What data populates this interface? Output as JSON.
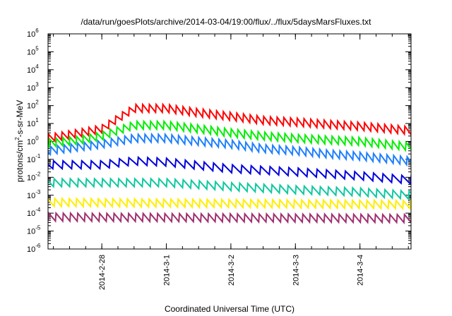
{
  "chart_data": {
    "type": "line",
    "title": "/data/run/goesPlots/archive/2014-03-04/19:00/flux/../flux/5daysMarsFluxes.txt",
    "xlabel": "Coordinated Universal Time (UTC)",
    "ylabel": {
      "prefix": "protons/cm",
      "sup": "2",
      "suffix": "-s-sr-MeV"
    },
    "yscale": "log",
    "ylim": [
      1e-06,
      1000000.0
    ],
    "y_ticks": [
      {
        "base": "10",
        "exp": "-6",
        "value": 1e-06
      },
      {
        "base": "10",
        "exp": "-5",
        "value": 1e-05
      },
      {
        "base": "10",
        "exp": "-4",
        "value": 0.0001
      },
      {
        "base": "10",
        "exp": "-3",
        "value": 0.001
      },
      {
        "base": "10",
        "exp": "-2",
        "value": 0.01
      },
      {
        "base": "10",
        "exp": "-1",
        "value": 0.1
      },
      {
        "base": "10",
        "exp": "0",
        "value": 1
      },
      {
        "base": "10",
        "exp": "1",
        "value": 10
      },
      {
        "base": "10",
        "exp": "2",
        "value": 100
      },
      {
        "base": "10",
        "exp": "3",
        "value": 1000
      },
      {
        "base": "10",
        "exp": "4",
        "value": 10000
      },
      {
        "base": "10",
        "exp": "5",
        "value": 100000
      },
      {
        "base": "10",
        "exp": "6",
        "value": 1000000
      }
    ],
    "xlim": [
      "2014-02-27T04:00",
      "2014-03-04T19:00"
    ],
    "x_ticks": [
      {
        "label": "2014-2-28",
        "value": "2014-02-28T00:00"
      },
      {
        "label": "2014-3-1",
        "value": "2014-03-01T00:00"
      },
      {
        "label": "2014-3-2",
        "value": "2014-03-02T00:00"
      },
      {
        "label": "2014-3-3",
        "value": "2014-03-03T00:00"
      },
      {
        "label": "2014-3-4",
        "value": "2014-03-04T00:00"
      }
    ],
    "grid": false,
    "legend": "none",
    "series": [
      {
        "color": "#ff0000",
        "tooth_period_hours": 2.5,
        "x": [
          "2014-02-27T04:00",
          "2014-02-27T16:00",
          "2014-02-28T00:00",
          "2014-02-28T12:00",
          "2014-03-01T00:00",
          "2014-03-01T12:00",
          "2014-03-02T00:00",
          "2014-03-02T12:00",
          "2014-03-03T00:00",
          "2014-03-03T12:00",
          "2014-03-04T00:00",
          "2014-03-04T19:00"
        ],
        "y": [
          1.5,
          3,
          5,
          70,
          70,
          40,
          25,
          15,
          12,
          9,
          7,
          4
        ]
      },
      {
        "color": "#00ee00",
        "tooth_period_hours": 2.5,
        "x": [
          "2014-02-27T04:00",
          "2014-02-27T16:00",
          "2014-02-28T00:00",
          "2014-02-28T12:00",
          "2014-03-01T00:00",
          "2014-03-01T12:00",
          "2014-03-02T00:00",
          "2014-03-02T12:00",
          "2014-03-03T00:00",
          "2014-03-03T12:00",
          "2014-03-04T00:00",
          "2014-03-04T19:00"
        ],
        "y": [
          0.8,
          1.2,
          2,
          8,
          8,
          5,
          3,
          2,
          1.5,
          1.2,
          1,
          0.5
        ]
      },
      {
        "color": "#1e7fff",
        "tooth_period_hours": 2.5,
        "x": [
          "2014-02-27T04:00",
          "2014-02-27T16:00",
          "2014-02-28T00:00",
          "2014-02-28T12:00",
          "2014-03-01T00:00",
          "2014-03-01T12:00",
          "2014-03-02T00:00",
          "2014-03-02T12:00",
          "2014-03-03T00:00",
          "2014-03-03T12:00",
          "2014-03-04T00:00",
          "2014-03-04T19:00"
        ],
        "y": [
          0.3,
          0.5,
          0.7,
          1.5,
          1.5,
          1,
          0.7,
          0.4,
          0.3,
          0.2,
          0.15,
          0.08
        ]
      },
      {
        "color": "#0000dd",
        "tooth_period_hours": 3.5,
        "x": [
          "2014-02-27T04:00",
          "2014-02-28T00:00",
          "2014-02-28T12:00",
          "2014-03-01T00:00",
          "2014-03-02T00:00",
          "2014-03-03T00:00",
          "2014-03-04T00:00",
          "2014-03-04T19:00"
        ],
        "y": [
          0.05,
          0.05,
          0.08,
          0.07,
          0.03,
          0.02,
          0.012,
          0.007
        ]
      },
      {
        "color": "#10c8a0",
        "tooth_period_hours": 3.0,
        "x": [
          "2014-02-27T04:00",
          "2014-03-01T00:00",
          "2014-03-02T00:00",
          "2014-03-03T00:00",
          "2014-03-04T00:00",
          "2014-03-04T19:00"
        ],
        "y": [
          0.005,
          0.005,
          0.003,
          0.002,
          0.0015,
          0.001
        ]
      },
      {
        "color": "#ffee00",
        "tooth_period_hours": 2.7,
        "x": [
          "2014-02-27T04:00",
          "2014-03-04T19:00"
        ],
        "y": [
          0.0004,
          0.0003
        ]
      },
      {
        "color": "#a0306e",
        "tooth_period_hours": 2.7,
        "x": [
          "2014-02-27T04:00",
          "2014-03-04T19:00"
        ],
        "y": [
          6e-05,
          5e-05
        ]
      }
    ]
  }
}
